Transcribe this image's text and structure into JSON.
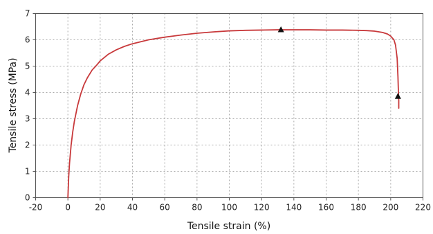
{
  "chart_data": {
    "type": "line",
    "title": "",
    "xlabel": "Tensile strain (%)",
    "ylabel": "Tensile stress (MPa)",
    "xlim": [
      -20,
      220
    ],
    "ylim": [
      0,
      7
    ],
    "xticks": [
      -20,
      0,
      20,
      40,
      60,
      80,
      100,
      120,
      140,
      160,
      180,
      200,
      220
    ],
    "yticks": [
      0,
      1,
      2,
      3,
      4,
      5,
      6,
      7
    ],
    "grid": true,
    "legend": "none",
    "series": [
      {
        "color": "#c8393b",
        "x": [
          0,
          0.5,
          1,
          2,
          3,
          4,
          5,
          6,
          8,
          10,
          12,
          15,
          18,
          20,
          25,
          30,
          35,
          40,
          50,
          60,
          70,
          80,
          90,
          100,
          110,
          120,
          130,
          140,
          150,
          160,
          170,
          180,
          185,
          190,
          195,
          198,
          200,
          202,
          203,
          204,
          204.5,
          204.8,
          205,
          205
        ],
        "y": [
          0,
          0.8,
          1.3,
          2.0,
          2.5,
          2.9,
          3.2,
          3.5,
          3.95,
          4.3,
          4.55,
          4.85,
          5.05,
          5.2,
          5.45,
          5.62,
          5.75,
          5.85,
          6.0,
          6.1,
          6.18,
          6.25,
          6.3,
          6.34,
          6.36,
          6.37,
          6.38,
          6.38,
          6.38,
          6.37,
          6.37,
          6.36,
          6.35,
          6.33,
          6.28,
          6.22,
          6.14,
          6.0,
          5.8,
          5.3,
          4.6,
          4.0,
          3.7,
          3.4
        ]
      }
    ],
    "markers": [
      {
        "x": 132,
        "y": 6.38,
        "shape": "triangle"
      },
      {
        "x": 204.5,
        "y": 3.85,
        "shape": "triangle"
      }
    ]
  }
}
